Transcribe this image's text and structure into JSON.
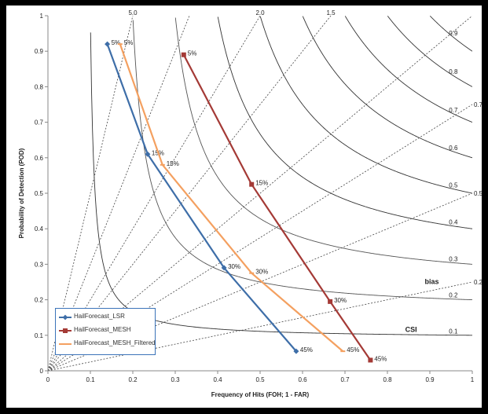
{
  "chart_data": {
    "type": "line",
    "xlabel": "Frequency of Hits (FOH; 1 - FAR)",
    "ylabel": "Probability of Detection (POD)",
    "xlim": [
      0,
      1
    ],
    "ylim": [
      0,
      1
    ],
    "x_ticks": [
      "0",
      "0.1",
      "0.2",
      "0.3",
      "0.4",
      "0.5",
      "0.6",
      "0.7",
      "0.8",
      "0.9",
      "1"
    ],
    "y_ticks": [
      "0",
      "0.1",
      "0.2",
      "0.3",
      "0.4",
      "0.5",
      "0.6",
      "0.7",
      "0.8",
      "0.9",
      "1"
    ],
    "legend_position": "bottom-left",
    "series": [
      {
        "name": "HailForecast_LSR",
        "color": "#3e6ea8",
        "marker": "diamond",
        "points": [
          {
            "x": 0.14,
            "y": 0.92,
            "label": "5%"
          },
          {
            "x": 0.235,
            "y": 0.61,
            "label": "15%"
          },
          {
            "x": 0.415,
            "y": 0.29,
            "label": "30%"
          },
          {
            "x": 0.585,
            "y": 0.055,
            "label": "45%"
          }
        ]
      },
      {
        "name": "HailForecast_MESH",
        "color": "#a43a36",
        "marker": "square",
        "points": [
          {
            "x": 0.32,
            "y": 0.89,
            "label": "5%"
          },
          {
            "x": 0.48,
            "y": 0.525,
            "label": "15%"
          },
          {
            "x": 0.665,
            "y": 0.195,
            "label": "30%"
          },
          {
            "x": 0.76,
            "y": 0.03,
            "label": "45%"
          }
        ]
      },
      {
        "name": "HailForecast_MESH_Filtered",
        "color": "#f4a060",
        "marker": "dash",
        "points": [
          {
            "x": 0.17,
            "y": 0.92,
            "label": "5%"
          },
          {
            "x": 0.27,
            "y": 0.58,
            "label": "15%"
          },
          {
            "x": 0.48,
            "y": 0.275,
            "label": "30%"
          },
          {
            "x": 0.695,
            "y": 0.055,
            "label": "45%"
          }
        ]
      }
    ],
    "bias_lines": [
      {
        "value": 5.0,
        "label": "5.0"
      },
      {
        "value": 2.0,
        "label": "2.0"
      },
      {
        "value": 1.5,
        "label": "1.5"
      },
      {
        "value": 0.75,
        "label": "0.75"
      },
      {
        "value": 0.5,
        "label": "0.5"
      },
      {
        "value": 0.25,
        "label": "0.25"
      }
    ],
    "bias_extra": [
      1.0,
      3.0
    ],
    "csi_curves": [
      {
        "value": 0.1,
        "label": "0.1"
      },
      {
        "value": 0.2,
        "label": "0.2"
      },
      {
        "value": 0.3,
        "label": "0.3"
      },
      {
        "value": 0.4,
        "label": "0.4"
      },
      {
        "value": 0.5,
        "label": "0.5"
      },
      {
        "value": 0.6,
        "label": "0.6"
      },
      {
        "value": 0.7,
        "label": "0.7"
      },
      {
        "value": 0.8,
        "label": "0.8"
      },
      {
        "value": 0.9,
        "label": "0.9"
      }
    ],
    "annotations": {
      "bias": "bias",
      "csi": "CSI"
    }
  }
}
